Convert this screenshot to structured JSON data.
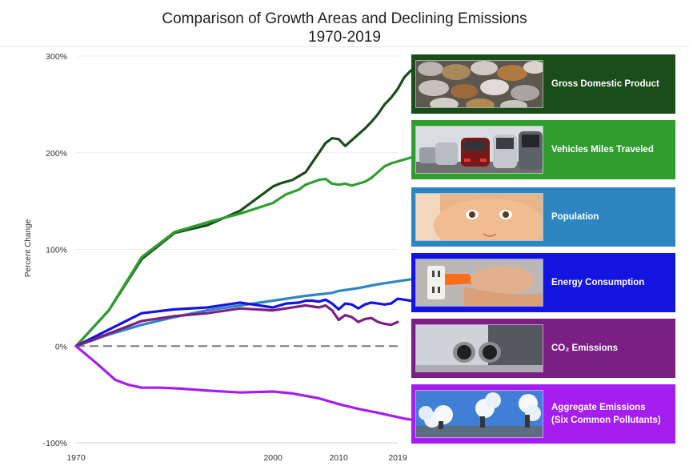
{
  "chart_data": {
    "type": "line",
    "title": "Comparison of Growth Areas and Declining Emissions",
    "subtitle": "1970-2019",
    "ylabel": "Percent Change",
    "xlim": [
      1970,
      2019
    ],
    "ylim": [
      -100,
      300
    ],
    "xticks": [
      {
        "value": 1970,
        "label": "1970"
      },
      {
        "value": 2000,
        "label": "2000"
      },
      {
        "value": 2010,
        "label": "2010"
      },
      {
        "value": 2019,
        "label": "2019"
      }
    ],
    "yticks": [
      {
        "value": 300,
        "label": "300%"
      },
      {
        "value": 200,
        "label": "200%"
      },
      {
        "value": 100,
        "label": "100%"
      },
      {
        "value": 0,
        "label": "0%"
      },
      {
        "value": -100,
        "label": "-100%"
      }
    ],
    "reference_line": {
      "y": 0,
      "style": "dashed",
      "color": "#888888"
    },
    "series": [
      {
        "name": "Gross Domestic Product",
        "color": "#1b4d1b",
        "thumb": "coins",
        "points": [
          [
            1970,
            0
          ],
          [
            1975,
            37
          ],
          [
            1980,
            90
          ],
          [
            1985,
            117
          ],
          [
            1990,
            125
          ],
          [
            1995,
            140
          ],
          [
            2000,
            165
          ],
          [
            2001,
            168
          ],
          [
            2003,
            172
          ],
          [
            2005,
            180
          ],
          [
            2007,
            200
          ],
          [
            2008,
            210
          ],
          [
            2009,
            215
          ],
          [
            2010,
            214
          ],
          [
            2011,
            207
          ],
          [
            2012,
            213
          ],
          [
            2013,
            219
          ],
          [
            2014,
            225
          ],
          [
            2015,
            232
          ],
          [
            2016,
            240
          ],
          [
            2017,
            250
          ],
          [
            2018,
            257
          ],
          [
            2019,
            266
          ],
          [
            2020,
            278
          ],
          [
            2021,
            285
          ]
        ]
      },
      {
        "name": "Vehicles Miles Traveled",
        "color": "#2f9e2f",
        "thumb": "cars",
        "points": [
          [
            1970,
            0
          ],
          [
            1975,
            37
          ],
          [
            1980,
            92
          ],
          [
            1985,
            118
          ],
          [
            1990,
            128
          ],
          [
            1995,
            137
          ],
          [
            2000,
            148
          ],
          [
            2002,
            157
          ],
          [
            2004,
            162
          ],
          [
            2005,
            167
          ],
          [
            2007,
            172
          ],
          [
            2008,
            173
          ],
          [
            2009,
            168
          ],
          [
            2010,
            167
          ],
          [
            2011,
            168
          ],
          [
            2012,
            166
          ],
          [
            2013,
            168
          ],
          [
            2014,
            170
          ],
          [
            2015,
            174
          ],
          [
            2016,
            180
          ],
          [
            2017,
            186
          ],
          [
            2018,
            189
          ],
          [
            2019,
            191
          ],
          [
            2021,
            195
          ]
        ]
      },
      {
        "name": "Population",
        "color": "#2e86c1",
        "thumb": "baby",
        "points": [
          [
            1970,
            0
          ],
          [
            1975,
            12
          ],
          [
            1980,
            22
          ],
          [
            1985,
            30
          ],
          [
            1990,
            37
          ],
          [
            1995,
            42
          ],
          [
            2000,
            47
          ],
          [
            2005,
            52
          ],
          [
            2009,
            55
          ],
          [
            2010,
            57
          ],
          [
            2013,
            60
          ],
          [
            2016,
            64
          ],
          [
            2019,
            67
          ],
          [
            2021,
            69
          ]
        ]
      },
      {
        "name": "Energy Consumption",
        "color": "#1414e0",
        "thumb": "plug",
        "points": [
          [
            1970,
            0
          ],
          [
            1975,
            17
          ],
          [
            1980,
            34
          ],
          [
            1985,
            38
          ],
          [
            1990,
            40
          ],
          [
            1995,
            45
          ],
          [
            2000,
            40
          ],
          [
            2002,
            44
          ],
          [
            2004,
            45
          ],
          [
            2005,
            47
          ],
          [
            2006,
            47
          ],
          [
            2007,
            46
          ],
          [
            2008,
            48
          ],
          [
            2009,
            44
          ],
          [
            2010,
            38
          ],
          [
            2011,
            44
          ],
          [
            2012,
            43
          ],
          [
            2013,
            39
          ],
          [
            2014,
            43
          ],
          [
            2015,
            45
          ],
          [
            2016,
            44
          ],
          [
            2017,
            43
          ],
          [
            2018,
            44
          ],
          [
            2019,
            49
          ],
          [
            2021,
            47
          ]
        ]
      },
      {
        "name": "CO₂ Emissions",
        "color": "#7a2084",
        "thumb": "exhaust",
        "points": [
          [
            1970,
            0
          ],
          [
            1975,
            13
          ],
          [
            1980,
            26
          ],
          [
            1985,
            31
          ],
          [
            1990,
            34
          ],
          [
            1995,
            39
          ],
          [
            2000,
            37
          ],
          [
            2002,
            39
          ],
          [
            2004,
            41
          ],
          [
            2005,
            42
          ],
          [
            2007,
            40
          ],
          [
            2008,
            42
          ],
          [
            2009,
            37
          ],
          [
            2010,
            27
          ],
          [
            2011,
            32
          ],
          [
            2012,
            30
          ],
          [
            2013,
            25
          ],
          [
            2014,
            28
          ],
          [
            2015,
            29
          ],
          [
            2016,
            25
          ],
          [
            2017,
            23
          ],
          [
            2018,
            22
          ],
          [
            2019,
            25
          ]
        ]
      },
      {
        "name": "Aggregate Emissions (Six Common Pollutants)",
        "color": "#a51df0",
        "thumb": "factory",
        "label_lines": [
          "Aggregate Emissions",
          "(Six Common Pollutants)"
        ],
        "points": [
          [
            1970,
            0
          ],
          [
            1973,
            -17
          ],
          [
            1976,
            -35
          ],
          [
            1978,
            -40
          ],
          [
            1980,
            -43
          ],
          [
            1983,
            -43
          ],
          [
            1986,
            -44
          ],
          [
            1990,
            -46
          ],
          [
            1995,
            -48
          ],
          [
            2000,
            -47
          ],
          [
            2003,
            -49
          ],
          [
            2007,
            -54
          ],
          [
            2010,
            -60
          ],
          [
            2013,
            -65
          ],
          [
            2016,
            -69
          ],
          [
            2018,
            -72
          ],
          [
            2020,
            -75
          ],
          [
            2021,
            -76
          ]
        ]
      }
    ]
  }
}
